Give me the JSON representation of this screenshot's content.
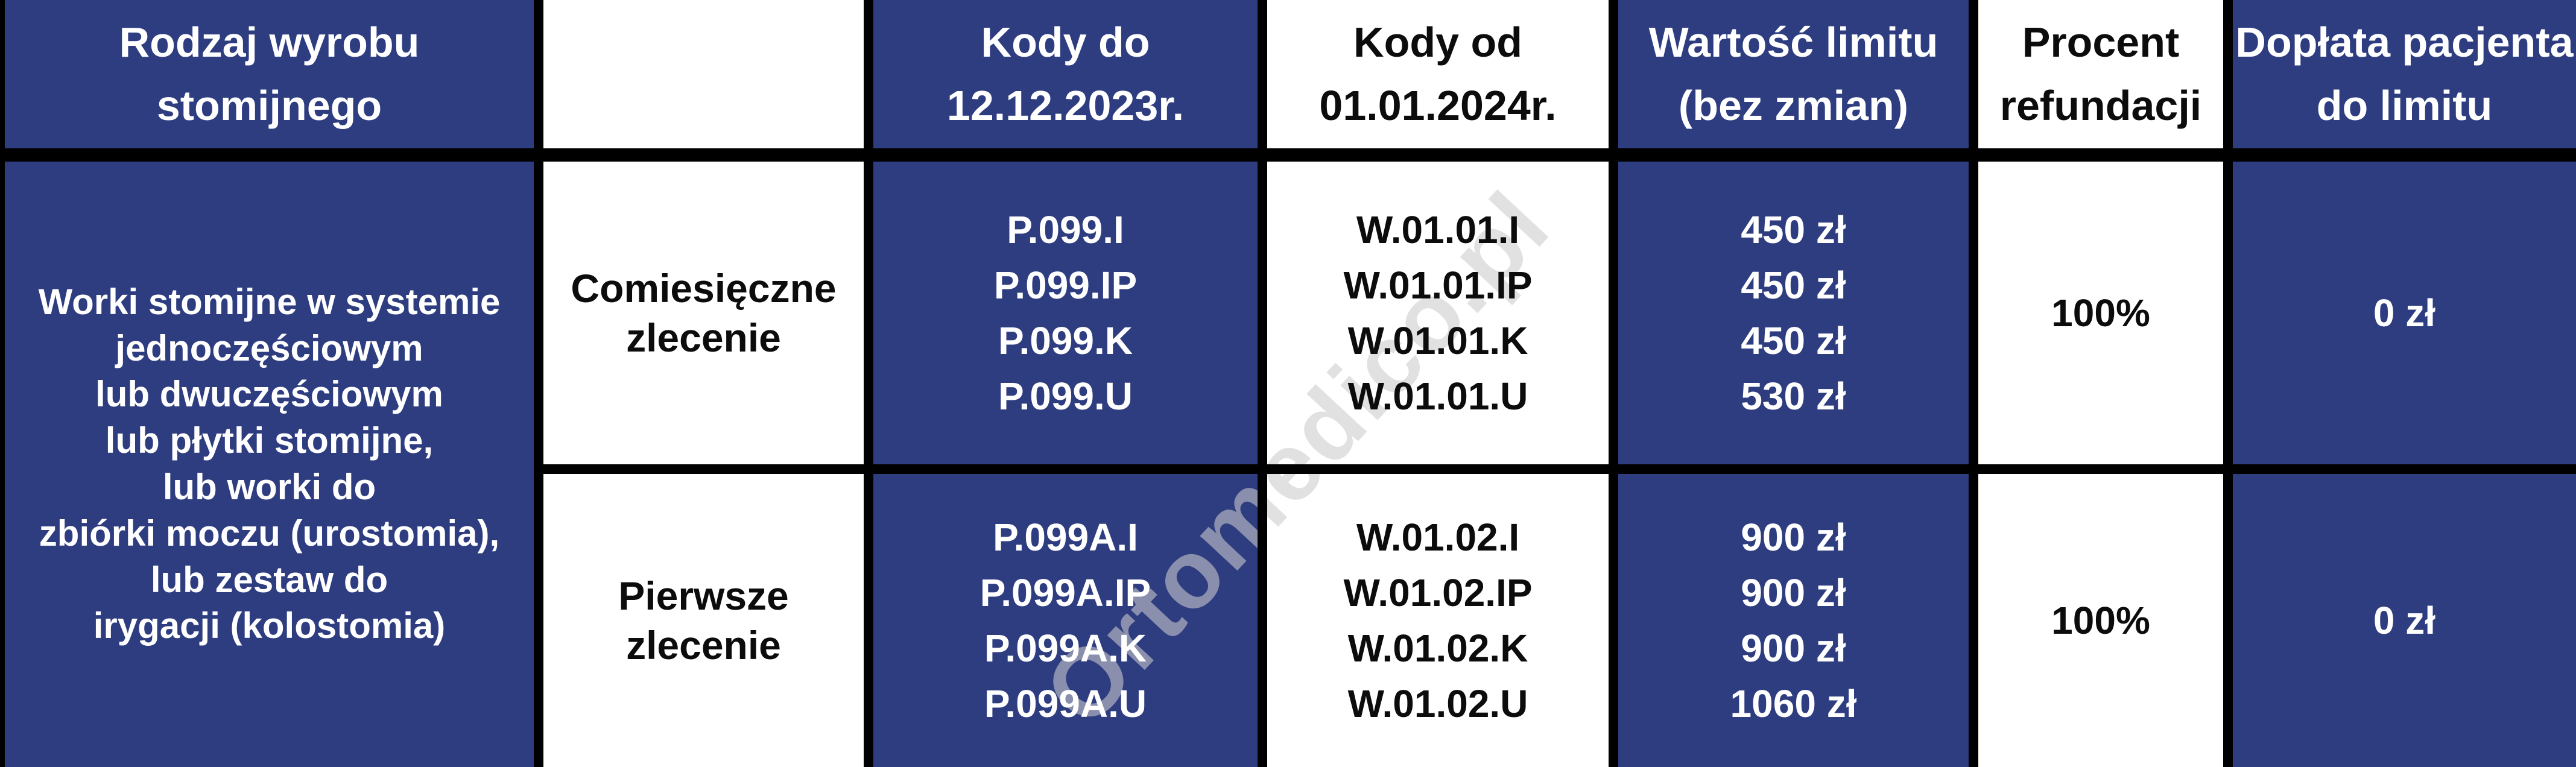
{
  "colors": {
    "navy": "#2e3d80",
    "white": "#ffffff",
    "border": "#000000",
    "text_on_white": "#0c0c0c",
    "text_on_navy": "#ffffff",
    "watermark_gray": "#cbcbcb"
  },
  "table": {
    "headers": [
      {
        "id": "product",
        "label": "Rodzaj wyrobu\nstomijnego"
      },
      {
        "id": "order-type",
        "label": ""
      },
      {
        "id": "codes-old",
        "label": "Kody do\n12.12.2023r."
      },
      {
        "id": "codes-new",
        "label": "Kody od\n01.01.2024r."
      },
      {
        "id": "limit",
        "label": "Wartość limitu\n(bez zmian)"
      },
      {
        "id": "refund",
        "label": "Procent\nrefundacji"
      },
      {
        "id": "copay",
        "label": "Dopłata pacjenta\ndo limitu"
      }
    ],
    "product_cell": "Worki stomijne w systemie\njednoczęściowym\nlub dwuczęściowym\nlub płytki stomijne,\nlub worki do\nzbiórki moczu (urostomia),\nlub zestaw do\nirygacji (kolostomia)",
    "rows": [
      {
        "order_type": "Comiesięczne\nzlecenie",
        "codes_old": [
          "P.099.I",
          "P.099.IP",
          "P.099.K",
          "P.099.U"
        ],
        "codes_new": [
          "W.01.01.I",
          "W.01.01.IP",
          "W.01.01.K",
          "W.01.01.U"
        ],
        "limit_values": [
          "450 zł",
          "450 zł",
          "450 zł",
          "530 zł"
        ],
        "refund_percent": "100%",
        "patient_copay": "0 zł"
      },
      {
        "order_type": "Pierwsze\nzlecenie",
        "codes_old": [
          "P.099A.I",
          "P.099A.IP",
          "P.099A.K",
          "P.099A.U"
        ],
        "codes_new": [
          "W.01.02.I",
          "W.01.02.IP",
          "W.01.02.K",
          "W.01.02.U"
        ],
        "limit_values": [
          "900 zł",
          "900 zł",
          "900 zł",
          "1060 zł"
        ],
        "refund_percent": "100%",
        "patient_copay": "0 zł"
      }
    ],
    "watermark": "Ortomedico.pl"
  }
}
